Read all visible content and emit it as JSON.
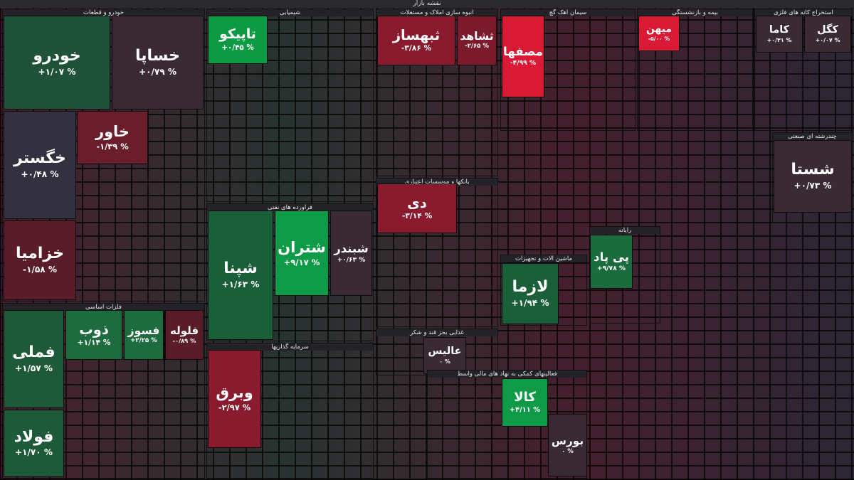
{
  "title": "نقشه بازار",
  "sectors": [
    {
      "title": "خودرو و قطعات",
      "tiles": [
        {
          "name": "خودرو",
          "change": "+۱/۰۷ %",
          "color": "#1f5238"
        },
        {
          "name": "خساپا",
          "change": "+۰/۷۹ %",
          "color": "#3a2a33"
        },
        {
          "name": "خگستر",
          "change": "+۰/۴۸ %",
          "color": "#33303f"
        },
        {
          "name": "خاور",
          "change": "-۱/۳۹ %",
          "color": "#6a1e2c"
        },
        {
          "name": "خزامیا",
          "change": "-۱/۵۸ %",
          "color": "#5a1c28"
        }
      ]
    },
    {
      "title": "فلزات اساسی",
      "tiles": [
        {
          "name": "فملی",
          "change": "+۱/۵۷ %",
          "color": "#1e5a3a"
        },
        {
          "name": "فولاد",
          "change": "+۱/۷۰ %",
          "color": "#1e5a3a"
        },
        {
          "name": "ذوب",
          "change": "+۱/۱۴ %",
          "color": "#1f6b40"
        },
        {
          "name": "فسوز",
          "change": "+۲/۲۵ %",
          "color": "#1f6b40"
        },
        {
          "name": "فلوله",
          "change": "-۰/۸۹ %",
          "color": "#5a1c28"
        }
      ]
    },
    {
      "title": "شیمیایی",
      "tiles": [
        {
          "name": "تاپیکو",
          "change": "+۰/۴۵ %",
          "color": "#0e9a45"
        }
      ]
    },
    {
      "title": "فرآورده های نفتی",
      "tiles": [
        {
          "name": "شپنا",
          "change": "+۱/۶۳ %",
          "color": "#1a5e3a"
        },
        {
          "name": "شتران",
          "change": "+۹/۱۷ %",
          "color": "#0f9a48"
        },
        {
          "name": "شبندر",
          "change": "+۰/۶۳ %",
          "color": "#3a2a33"
        }
      ]
    },
    {
      "title": "سرمایه گذاریها",
      "tiles": [
        {
          "name": "وبرق",
          "change": "-۲/۹۷ %",
          "color": "#8a1a2e"
        }
      ]
    },
    {
      "title": "انبوه سازی املاک و مستغلات",
      "tiles": [
        {
          "name": "ثبهساز",
          "change": "-۳/۸۶ %",
          "color": "#8a1a2e"
        },
        {
          "name": "ثشاهد",
          "change": "-۲/۶۵ %",
          "color": "#7a1a2a"
        }
      ]
    },
    {
      "title": "بانکها و موسسات اعتباری",
      "tiles": [
        {
          "name": "دی",
          "change": "-۳/۱۴ %",
          "color": "#8a1a2e"
        }
      ]
    },
    {
      "title": "غذایی بجز قند و شکر",
      "tiles": [
        {
          "name": "عالیس",
          "change": "۰ %",
          "color": "#3a2a33"
        }
      ]
    },
    {
      "title": "فعالیتهای کمکی به نهاد های مالی واسط",
      "tiles": [
        {
          "name": "کالا",
          "change": "+۴/۱۱ %",
          "color": "#0f9a48"
        },
        {
          "name": "بورس",
          "change": "۰ %",
          "color": "#3a2a33"
        }
      ]
    },
    {
      "title": "ماشین آلات و تجهیزات",
      "tiles": [
        {
          "name": "لازما",
          "change": "+۱/۹۴ %",
          "color": "#1a5e3a"
        }
      ]
    },
    {
      "title": "رایانه",
      "tiles": [
        {
          "name": "پی پاد",
          "change": "+۹/۷۸ %",
          "color": "#1a6b3e"
        }
      ]
    },
    {
      "title": "استخراج کانه های فلزی",
      "tiles": [
        {
          "name": "کاما",
          "change": "+۰/۳۱ %",
          "color": "#3a2a33"
        },
        {
          "name": "کگل",
          "change": "+۰/۰۷ %",
          "color": "#3a2a33"
        }
      ]
    },
    {
      "title": "چندرشته ای صنعتی",
      "tiles": [
        {
          "name": "شستا",
          "change": "+۰/۷۳ %",
          "color": "#3a2a33"
        }
      ]
    },
    {
      "title": "سیمان آهک گچ",
      "tiles": [
        {
          "name": "مصفها",
          "change": "-۴/۹۹ %",
          "color": "#d81a35"
        }
      ]
    },
    {
      "title": "بیمه و بازنشستگی",
      "tiles": [
        {
          "name": "میهن",
          "change": "-۵/۰۰ %",
          "color": "#d81a35"
        }
      ]
    }
  ]
}
